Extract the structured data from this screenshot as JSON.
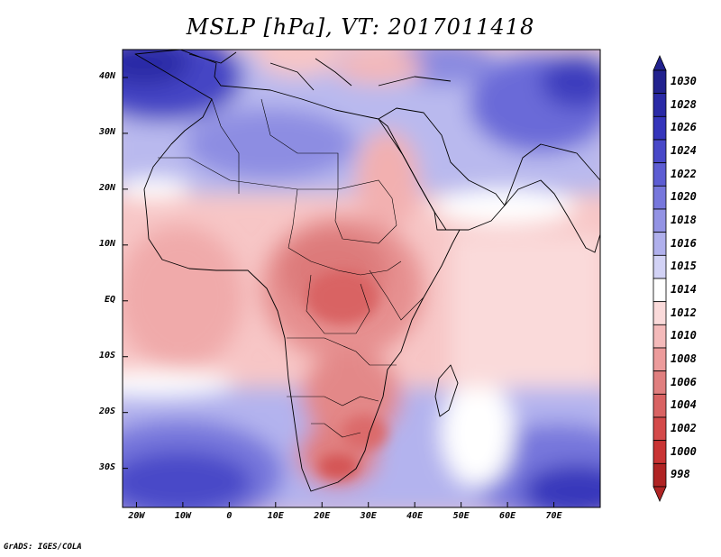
{
  "title": "MSLP [hPa], VT: 2017011418",
  "credit": "GrADS: IGES/COLA",
  "map_data": {
    "variable": "Mean Sea Level Pressure",
    "units": "hPa",
    "valid_time": "2017011418",
    "region": "Africa, Middle East and Arabian Sea",
    "extent": {
      "lon_min": -23,
      "lon_max": 80,
      "lat_min": -37,
      "lat_max": 45
    },
    "lat_ticks": [
      {
        "value": 40,
        "label": "40N"
      },
      {
        "value": 30,
        "label": "30N"
      },
      {
        "value": 20,
        "label": "20N"
      },
      {
        "value": 10,
        "label": "10N"
      },
      {
        "value": 0,
        "label": "EQ"
      },
      {
        "value": -10,
        "label": "10S"
      },
      {
        "value": -20,
        "label": "20S"
      },
      {
        "value": -30,
        "label": "30S"
      }
    ],
    "lon_ticks": [
      {
        "value": -20,
        "label": "20W"
      },
      {
        "value": -10,
        "label": "10W"
      },
      {
        "value": 0,
        "label": "0"
      },
      {
        "value": 10,
        "label": "10E"
      },
      {
        "value": 20,
        "label": "20E"
      },
      {
        "value": 30,
        "label": "30E"
      },
      {
        "value": 40,
        "label": "40E"
      },
      {
        "value": 50,
        "label": "50E"
      },
      {
        "value": 60,
        "label": "60E"
      },
      {
        "value": 70,
        "label": "70E"
      }
    ]
  },
  "colorbar": {
    "levels": [
      {
        "label": "1030",
        "color": "#22228e"
      },
      {
        "label": "1028",
        "color": "#2a2aa6"
      },
      {
        "label": "1026",
        "color": "#3535bb"
      },
      {
        "label": "1024",
        "color": "#4848c8"
      },
      {
        "label": "1022",
        "color": "#5d5dd3"
      },
      {
        "label": "1020",
        "color": "#7777dc"
      },
      {
        "label": "1018",
        "color": "#9393e4"
      },
      {
        "label": "1016",
        "color": "#b0b0ec"
      },
      {
        "label": "1015",
        "color": "#d2d2f5"
      },
      {
        "label": "1014",
        "color": "#ffffff"
      },
      {
        "label": "1012",
        "color": "#fadada"
      },
      {
        "label": "1010",
        "color": "#f4baba"
      },
      {
        "label": "1008",
        "color": "#ec9b9b"
      },
      {
        "label": "1006",
        "color": "#e07f7f"
      },
      {
        "label": "1004",
        "color": "#d96363"
      },
      {
        "label": "1002",
        "color": "#d44a4a"
      },
      {
        "label": "1000",
        "color": "#c93434"
      },
      {
        "label": "998",
        "color": "#b02424"
      }
    ]
  }
}
